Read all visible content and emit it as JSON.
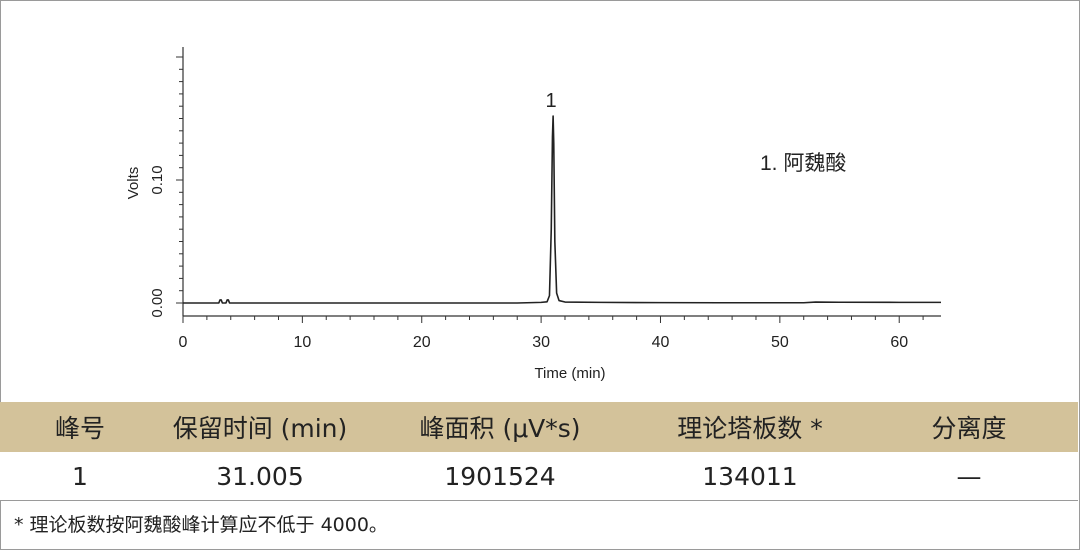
{
  "chart_data": {
    "type": "line",
    "xlabel": "Time (min)",
    "ylabel": "Volts",
    "xlim": [
      0,
      63.5
    ],
    "ylim": [
      -0.005,
      0.2
    ],
    "x_ticks": [
      0,
      10,
      20,
      30,
      40,
      50,
      60
    ],
    "y_ticks": [
      0.0,
      0.1
    ],
    "y_tick_labels": [
      "0.00",
      "0.10"
    ],
    "grid": false,
    "series": [
      {
        "x": [
          0,
          3.0,
          3.1,
          3.2,
          3.3,
          3.4,
          3.6,
          3.7,
          3.8,
          3.9,
          4.0,
          10,
          20,
          28,
          30,
          30.5,
          30.7,
          30.85,
          30.95,
          31.005,
          31.06,
          31.15,
          31.3,
          31.5,
          32,
          35,
          40,
          45,
          50,
          52,
          53,
          55,
          60,
          63.5
        ],
        "y": [
          0.0,
          0.0,
          0.0025,
          0.0025,
          0.0,
          0.0,
          0.0,
          0.0025,
          0.0025,
          0.0,
          0.0,
          0.0,
          0.0,
          0.0,
          0.0005,
          0.001,
          0.006,
          0.06,
          0.135,
          0.152,
          0.13,
          0.05,
          0.008,
          0.002,
          0.0008,
          0.0005,
          0.0003,
          0.0002,
          0.0002,
          0.0002,
          0.0008,
          0.0006,
          0.0005,
          0.0005
        ]
      }
    ],
    "annotations": [
      {
        "text": "1",
        "x": 31.005
      }
    ],
    "legend_text": "1. 阿魏酸"
  },
  "table": {
    "headers": [
      "峰号",
      "保留时间 (min)",
      "峰面积 (μV*s)",
      "理论塔板数 *",
      "分离度"
    ],
    "rows": [
      [
        "1",
        "31.005",
        "1901524",
        "134011",
        "—"
      ]
    ]
  },
  "footnote": "* 理论板数按阿魏酸峰计算应不低于 4000。",
  "colors": {
    "header_bg": "#d3c29a",
    "border": "#9a9a9a",
    "trace": "#222222"
  }
}
